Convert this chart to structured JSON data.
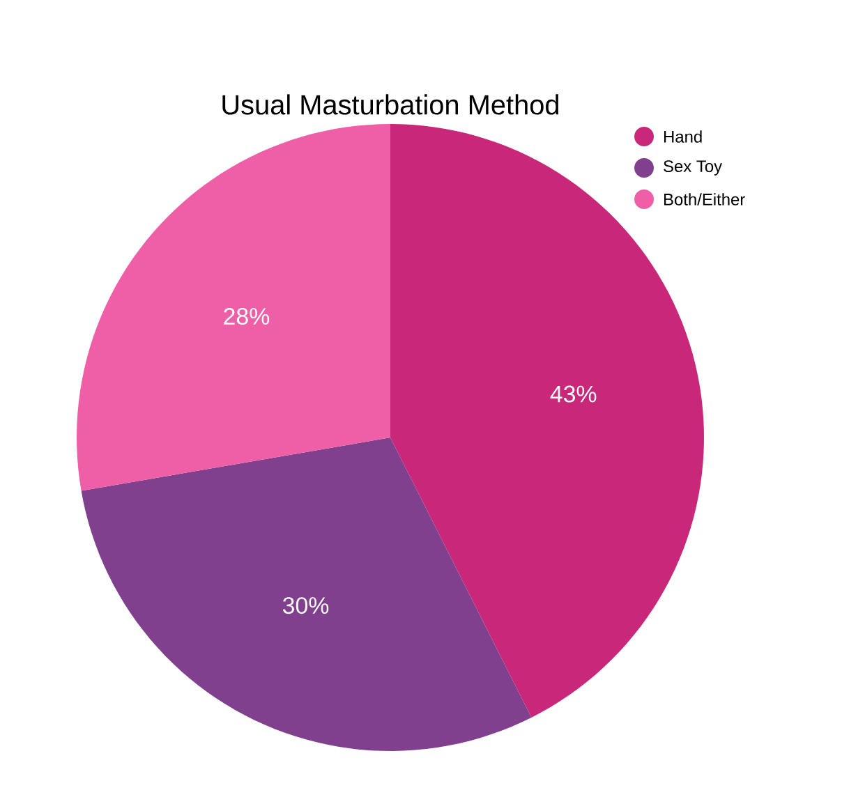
{
  "chart_data": {
    "type": "pie",
    "title": "Usual Masturbation Method",
    "categories": [
      "Hand",
      "Sex Toy",
      "Both/Either"
    ],
    "values": [
      43,
      30,
      28
    ],
    "value_labels": [
      "43%",
      "30%",
      "28%"
    ],
    "colors": [
      "#c9287a",
      "#81408e",
      "#ef5fa8"
    ],
    "legend": "top right"
  }
}
